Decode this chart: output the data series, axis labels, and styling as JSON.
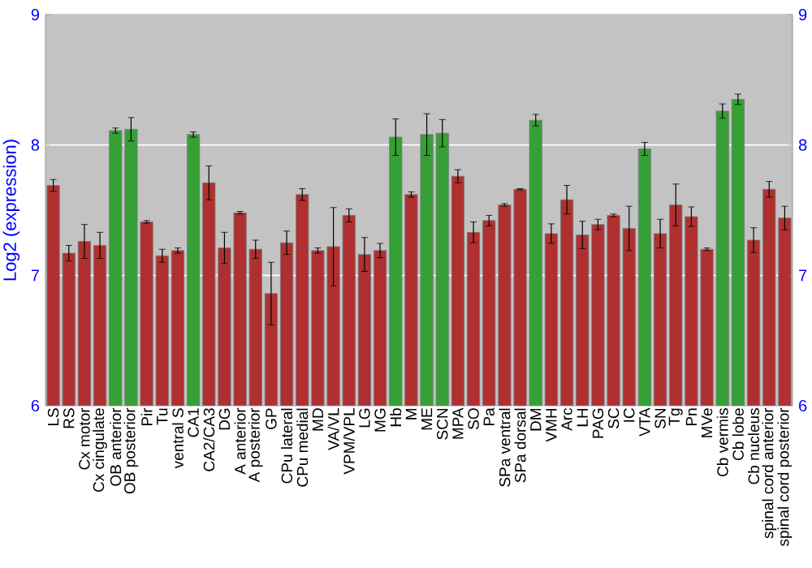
{
  "chart_data": {
    "type": "bar",
    "ylabel": "Log2 (expression)",
    "categories": [
      "LS",
      "RS",
      "Cx motor",
      "Cx cingulate",
      "OB anterior",
      "OB posterior",
      "Pir",
      "Tu",
      "ventral S",
      "CA1",
      "CA2/CA3",
      "DG",
      "A anterior",
      "A posterior",
      "GP",
      "CPu lateral",
      "CPu medial",
      "MD",
      "VA/VL",
      "VPM/VPL",
      "LG",
      "MG",
      "Hb",
      "M",
      "ME",
      "SCN",
      "MPA",
      "SO",
      "Pa",
      "SPa ventral",
      "SPa dorsal",
      "DM",
      "VMH",
      "Arc",
      "LH",
      "PAG",
      "SC",
      "IC",
      "VTA",
      "SN",
      "Tg",
      "Pn",
      "MVe",
      "Cb vermis",
      "Cb lobe",
      "Cb nucleus",
      "spinal cord anterior",
      "spinal cord posterior"
    ],
    "values": [
      7.69,
      7.17,
      7.26,
      7.23,
      8.11,
      8.12,
      7.41,
      7.15,
      7.19,
      8.08,
      7.71,
      7.21,
      7.48,
      7.2,
      6.86,
      7.25,
      7.62,
      7.19,
      7.22,
      7.46,
      7.16,
      7.19,
      8.06,
      7.62,
      8.08,
      8.09,
      7.76,
      7.33,
      7.42,
      7.54,
      7.66,
      8.19,
      7.32,
      7.58,
      7.31,
      7.39,
      7.46,
      7.36,
      7.97,
      7.32,
      7.54,
      7.45,
      7.2,
      8.26,
      8.35,
      7.27,
      7.66,
      7.44
    ],
    "errors": [
      0.045,
      0.06,
      0.13,
      0.1,
      0.02,
      0.09,
      0.01,
      0.05,
      0.02,
      0.02,
      0.13,
      0.12,
      0.01,
      0.07,
      0.24,
      0.09,
      0.045,
      0.02,
      0.3,
      0.05,
      0.13,
      0.055,
      0.14,
      0.02,
      0.16,
      0.105,
      0.05,
      0.08,
      0.04,
      0.01,
      0.005,
      0.045,
      0.075,
      0.11,
      0.105,
      0.04,
      0.01,
      0.17,
      0.05,
      0.11,
      0.16,
      0.075,
      0.01,
      0.055,
      0.04,
      0.095,
      0.06,
      0.09
    ],
    "colors": [
      "#b03030",
      "#b03030",
      "#b03030",
      "#b03030",
      "#35a035",
      "#35a035",
      "#b03030",
      "#b03030",
      "#b03030",
      "#35a035",
      "#b03030",
      "#b03030",
      "#b03030",
      "#b03030",
      "#b03030",
      "#b03030",
      "#b03030",
      "#b03030",
      "#b03030",
      "#b03030",
      "#b03030",
      "#b03030",
      "#35a035",
      "#b03030",
      "#35a035",
      "#35a035",
      "#b03030",
      "#b03030",
      "#b03030",
      "#b03030",
      "#b03030",
      "#35a035",
      "#b03030",
      "#b03030",
      "#b03030",
      "#b03030",
      "#b03030",
      "#b03030",
      "#35a035",
      "#b03030",
      "#b03030",
      "#b03030",
      "#b03030",
      "#35a035",
      "#35a035",
      "#b03030",
      "#b03030",
      "#b03030"
    ],
    "ylim": [
      6,
      9
    ],
    "yticks": [
      6,
      7,
      8,
      9
    ],
    "y2lim": [
      6,
      9
    ],
    "y2ticks": [
      6,
      7,
      8,
      9
    ],
    "grid": "y"
  }
}
